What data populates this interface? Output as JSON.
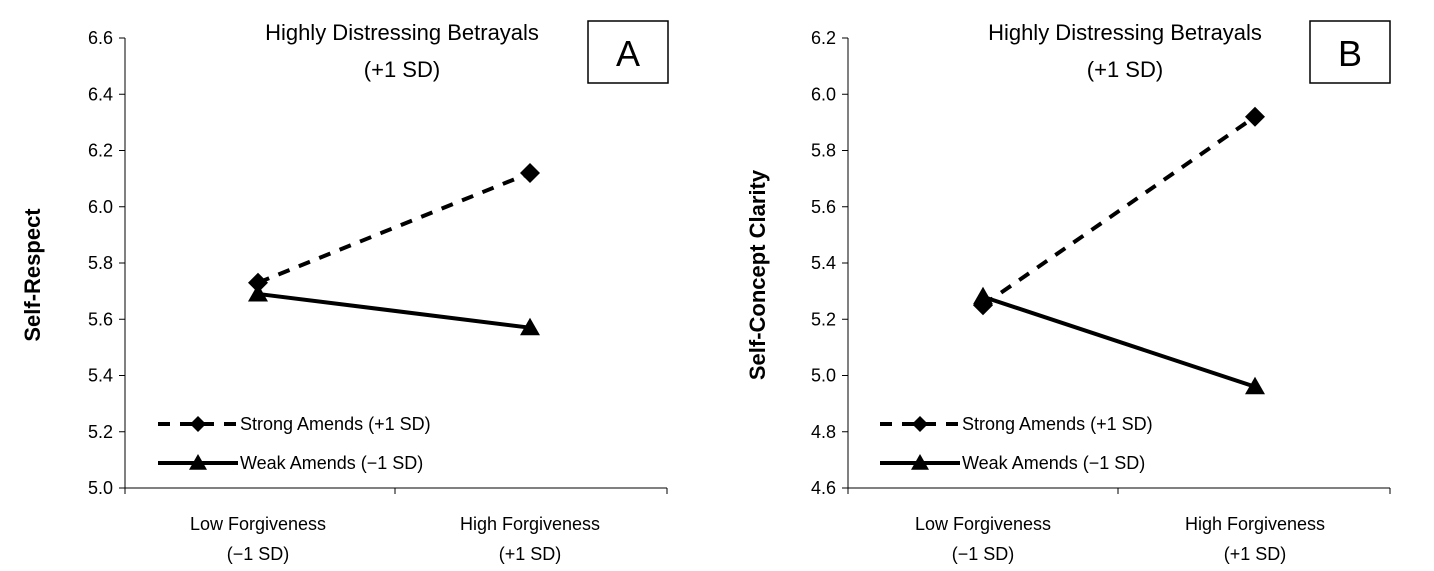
{
  "chart_data": [
    {
      "type": "line",
      "panel_letter": "A",
      "title": "Highly Distressing Betrayals",
      "subtitle": "(+1 SD)",
      "ylabel": "Self-Respect",
      "xlabel": "",
      "categories": [
        {
          "line1": "Low Forgiveness",
          "line2": "(−1 SD)"
        },
        {
          "line1": "High Forgiveness",
          "line2": "(+1 SD)"
        }
      ],
      "ylim": [
        5.0,
        6.6
      ],
      "yticks": [
        "5.0",
        "5.2",
        "5.4",
        "5.6",
        "5.8",
        "6.0",
        "6.2",
        "6.4",
        "6.6"
      ],
      "series": [
        {
          "name": "Strong Amends (+1 SD)",
          "values": [
            5.73,
            6.12
          ],
          "style": "dashed",
          "marker": "diamond"
        },
        {
          "name": "Weak Amends (−1 SD)",
          "values": [
            5.69,
            5.57
          ],
          "style": "solid",
          "marker": "triangle"
        }
      ],
      "legend_position": "bottom-left",
      "grid": false
    },
    {
      "type": "line",
      "panel_letter": "B",
      "title": "Highly Distressing Betrayals",
      "subtitle": "(+1 SD)",
      "ylabel": "Self-Concept Clarity",
      "xlabel": "",
      "categories": [
        {
          "line1": "Low Forgiveness",
          "line2": "(−1 SD)"
        },
        {
          "line1": "High Forgiveness",
          "line2": "(+1 SD)"
        }
      ],
      "ylim": [
        4.6,
        6.2
      ],
      "yticks": [
        "4.6",
        "4.8",
        "5.0",
        "5.2",
        "5.4",
        "5.6",
        "5.8",
        "6.0",
        "6.2"
      ],
      "series": [
        {
          "name": "Strong Amends (+1 SD)",
          "values": [
            5.25,
            5.92
          ],
          "style": "dashed",
          "marker": "diamond"
        },
        {
          "name": "Weak Amends (−1 SD)",
          "values": [
            5.28,
            4.96
          ],
          "style": "solid",
          "marker": "triangle"
        }
      ],
      "legend_position": "bottom-left",
      "grid": false
    }
  ]
}
